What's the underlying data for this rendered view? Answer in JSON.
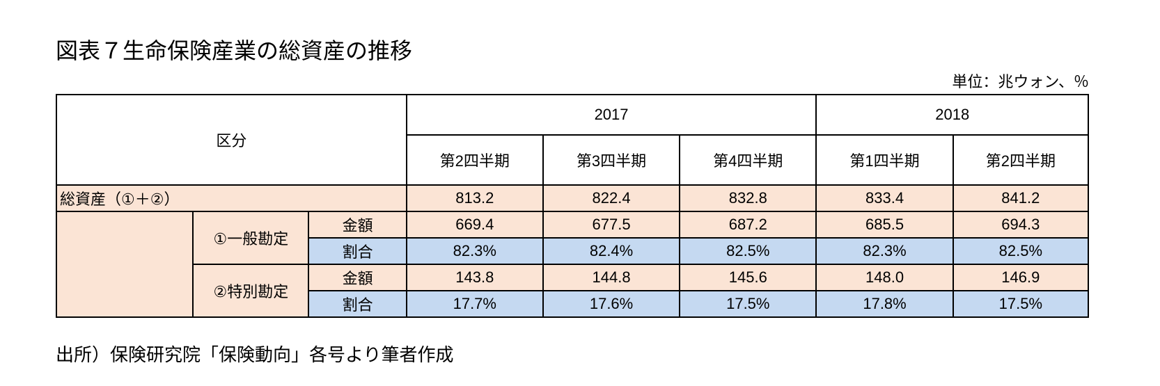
{
  "title": "図表７生命保険産業の総資産の推移",
  "unit": "単位：兆ウォン、％",
  "header": {
    "category": "区分",
    "years": [
      "2017",
      "2018"
    ],
    "quarters": [
      "第2四半期",
      "第3四半期",
      "第4四半期",
      "第1四半期",
      "第2四半期"
    ]
  },
  "rows": {
    "total_label": "総資産（①＋②）",
    "total_values": [
      "813.2",
      "822.4",
      "832.8",
      "833.4",
      "841.2"
    ],
    "general_label": "①一般勘定",
    "special_label": "②特別勘定",
    "amount_label": "金額",
    "ratio_label": "割合",
    "general_amount": [
      "669.4",
      "677.5",
      "687.2",
      "685.5",
      "694.3"
    ],
    "general_ratio": [
      "82.3%",
      "82.4%",
      "82.5%",
      "82.3%",
      "82.5%"
    ],
    "special_amount": [
      "143.8",
      "144.8",
      "145.6",
      "148.0",
      "146.9"
    ],
    "special_ratio": [
      "17.7%",
      "17.6%",
      "17.5%",
      "17.8%",
      "17.5%"
    ]
  },
  "source": "出所）保険研究院「保険動向」各号より筆者作成"
}
